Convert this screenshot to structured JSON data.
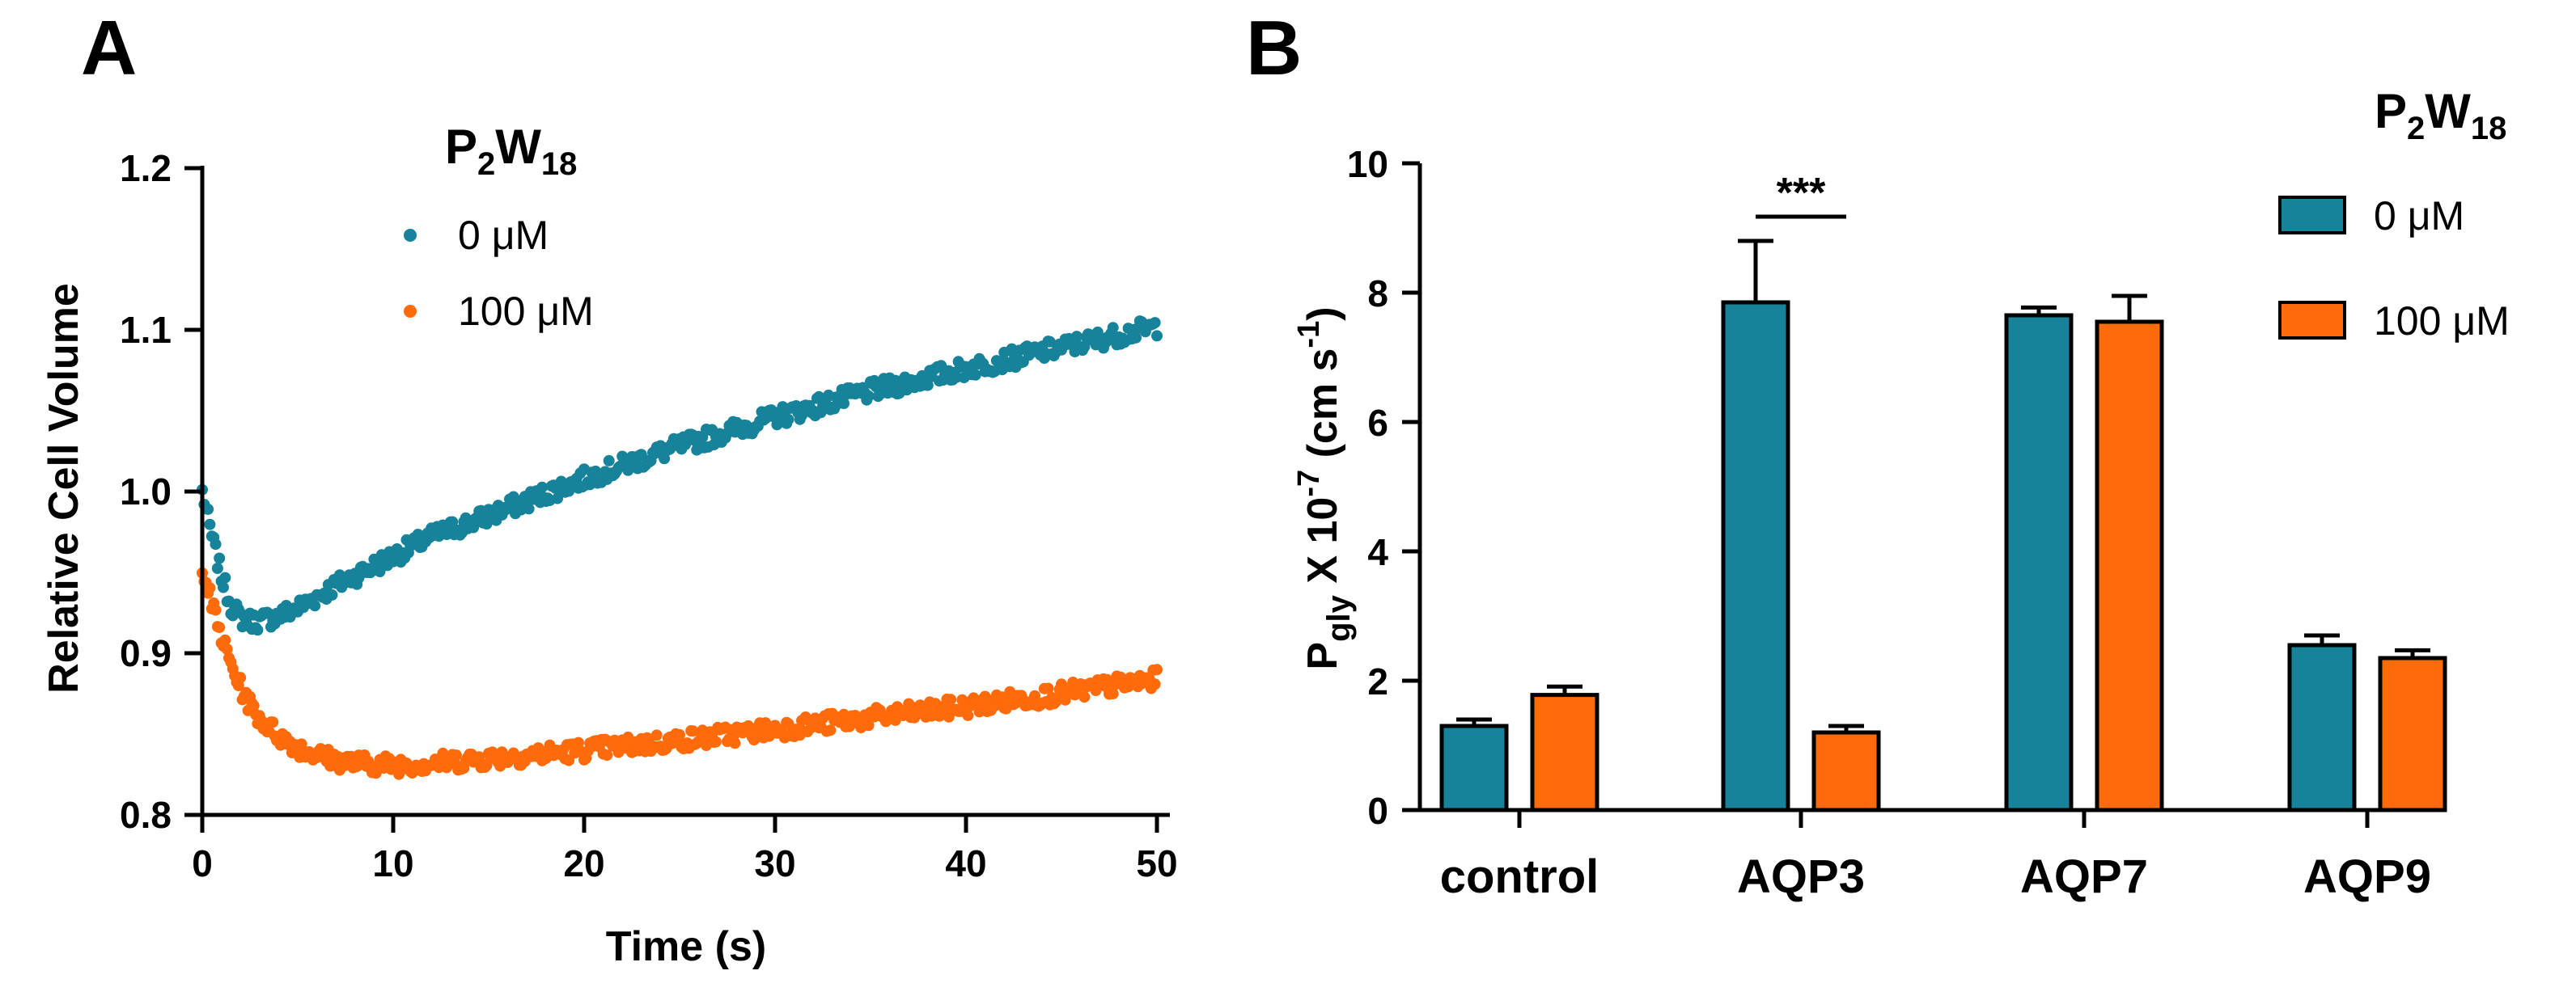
{
  "panels": {
    "a": {
      "letter": "A"
    },
    "b": {
      "letter": "B"
    }
  },
  "legend": {
    "title_main": "P",
    "title_sub1": "2",
    "title_mid": "W",
    "title_sub2": "18",
    "entries": [
      "0 μM",
      "100 μM"
    ]
  },
  "colors": {
    "control": "#17839a",
    "treated": "#ff6a0a"
  },
  "chart_data": [
    {
      "type": "scatter",
      "title": "",
      "xlabel": "Time (s)",
      "ylabel": "Relative Cell Volume",
      "xlim": [
        0,
        50
      ],
      "ylim": [
        0.8,
        1.2
      ],
      "xticks": [
        0,
        10,
        20,
        30,
        40,
        50
      ],
      "yticks": [
        0.8,
        0.9,
        1.0,
        1.1,
        1.2
      ],
      "xtick_labels": [
        "0",
        "10",
        "20",
        "30",
        "40",
        "50"
      ],
      "ytick_labels": [
        "0.8",
        "0.9",
        "1.0",
        "1.1",
        "1.2"
      ],
      "series": [
        {
          "name": "0 μM",
          "color": "#17839a",
          "x": [
            0,
            0.5,
            1,
            1.5,
            2,
            2.5,
            3,
            4,
            5,
            6,
            7,
            8,
            10,
            12,
            15,
            20,
            25,
            30,
            35,
            40,
            45,
            50
          ],
          "y": [
            1.0,
            0.972,
            0.948,
            0.93,
            0.922,
            0.92,
            0.92,
            0.923,
            0.928,
            0.935,
            0.942,
            0.948,
            0.96,
            0.972,
            0.985,
            1.008,
            1.028,
            1.046,
            1.062,
            1.076,
            1.089,
            1.102
          ]
        },
        {
          "name": "100 μM",
          "color": "#ff6a0a",
          "x": [
            0,
            0.5,
            1,
            1.5,
            2,
            2.5,
            3,
            4,
            5,
            6,
            7,
            8,
            10,
            12,
            15,
            20,
            25,
            30,
            35,
            40,
            45,
            50
          ],
          "y": [
            0.955,
            0.93,
            0.91,
            0.893,
            0.879,
            0.868,
            0.86,
            0.849,
            0.842,
            0.837,
            0.834,
            0.832,
            0.831,
            0.832,
            0.835,
            0.84,
            0.846,
            0.853,
            0.86,
            0.867,
            0.875,
            0.884
          ]
        }
      ]
    },
    {
      "type": "bar",
      "title": "",
      "xlabel": "",
      "ylabel": "P",
      "ylabel_sub": "gly",
      "ylabel_mid": " X 10",
      "ylabel_sup1": "-7",
      "ylabel_rest": " (cm s",
      "ylabel_sup2": "-1",
      "ylabel_end": ")",
      "ylim": [
        0,
        10
      ],
      "yticks": [
        0,
        2,
        4,
        6,
        8,
        10
      ],
      "ytick_labels": [
        "0",
        "2",
        "4",
        "6",
        "8",
        "10"
      ],
      "categories": [
        "control",
        "AQP3",
        "AQP7",
        "AQP9"
      ],
      "series": [
        {
          "name": "0 μM",
          "color": "#17839a",
          "values": [
            1.3,
            7.85,
            7.65,
            2.55
          ],
          "errors": [
            0.1,
            0.95,
            0.12,
            0.15
          ]
        },
        {
          "name": "100 μM",
          "color": "#ff6a0a",
          "values": [
            1.78,
            1.2,
            7.55,
            2.35
          ],
          "errors": [
            0.13,
            0.1,
            0.4,
            0.12
          ]
        }
      ],
      "annotations": [
        {
          "category": "AQP3",
          "text": "***"
        }
      ]
    }
  ]
}
